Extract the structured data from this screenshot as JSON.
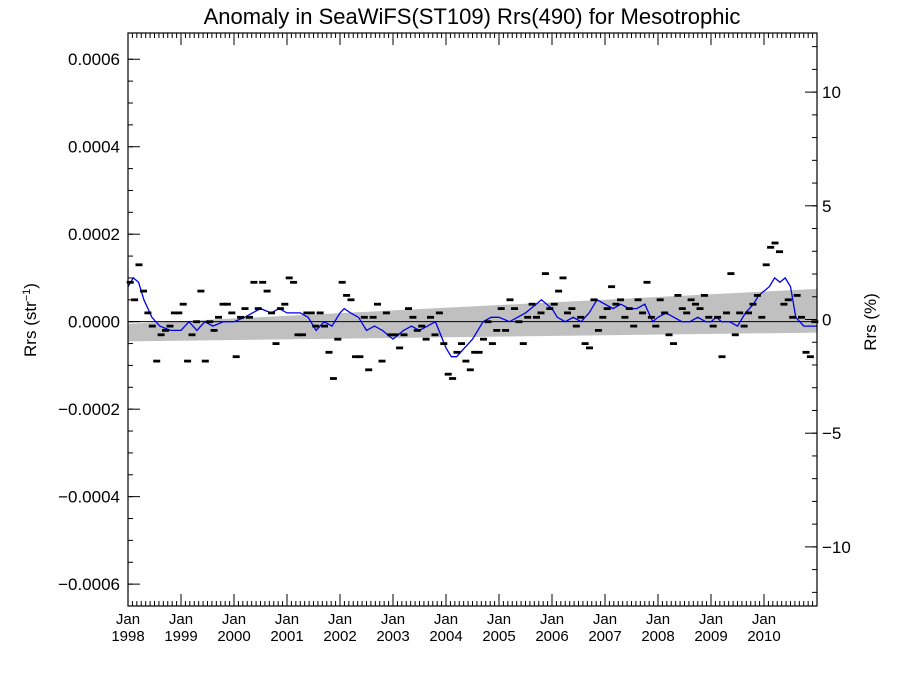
{
  "chart_data": {
    "type": "scatter",
    "title": "Anomaly in SeaWiFS(ST109) Rrs(490) for Mesotrophic",
    "ylabel_left": "Rrs (str",
    "ylabel_left_sup": "−1",
    "ylabel_left_close": ")",
    "ylabel_right": "Rrs (%)",
    "xlim": [
      1998.0,
      2011.0
    ],
    "ylim": [
      -0.00065,
      0.00066
    ],
    "ylim_right": [
      -12.6,
      12.6
    ],
    "x_ticks": [
      {
        "x": 1998,
        "month": "Jan",
        "year": "1998"
      },
      {
        "x": 1999,
        "month": "Jan",
        "year": "1999"
      },
      {
        "x": 2000,
        "month": "Jan",
        "year": "2000"
      },
      {
        "x": 2001,
        "month": "Jan",
        "year": "2001"
      },
      {
        "x": 2002,
        "month": "Jan",
        "year": "2002"
      },
      {
        "x": 2003,
        "month": "Jan",
        "year": "2003"
      },
      {
        "x": 2004,
        "month": "Jan",
        "year": "2004"
      },
      {
        "x": 2005,
        "month": "Jan",
        "year": "2005"
      },
      {
        "x": 2006,
        "month": "Jan",
        "year": "2006"
      },
      {
        "x": 2007,
        "month": "Jan",
        "year": "2007"
      },
      {
        "x": 2008,
        "month": "Jan",
        "year": "2008"
      },
      {
        "x": 2009,
        "month": "Jan",
        "year": "2009"
      },
      {
        "x": 2010,
        "month": "Jan",
        "year": "2010"
      }
    ],
    "y_ticks_left": [
      {
        "value": 0.0006,
        "label": "0.0006"
      },
      {
        "value": 0.0004,
        "label": "0.0004"
      },
      {
        "value": 0.0002,
        "label": "0.0002"
      },
      {
        "value": 0.0,
        "label": "0.0000"
      },
      {
        "value": -0.0002,
        "label": "−0.0002"
      },
      {
        "value": -0.0004,
        "label": "−0.0004"
      },
      {
        "value": -0.0006,
        "label": "−0.0006"
      }
    ],
    "y_ticks_right": [
      {
        "value": 10,
        "label": "10"
      },
      {
        "value": 5,
        "label": "5"
      },
      {
        "value": 0,
        "label": "0"
      },
      {
        "value": -5,
        "label": "−5"
      },
      {
        "value": -10,
        "label": "−10"
      }
    ],
    "grid": false,
    "colors": {
      "points": "#000000",
      "smoothed_line": "#0000ee",
      "trend_band": "#c0c0c0",
      "zero_line": "#000000"
    },
    "monthly_points_y": [
      9e-05,
      5e-05,
      0.00013,
      7e-05,
      2e-05,
      -1e-05,
      -9e-05,
      -3e-05,
      -2e-05,
      -1e-05,
      2e-05,
      2e-05,
      4e-05,
      -9e-05,
      -3e-05,
      0.0,
      7e-05,
      -9e-05,
      0.0,
      -2e-05,
      1e-05,
      4e-05,
      4e-05,
      2e-05,
      -8e-05,
      1e-05,
      3e-05,
      1e-05,
      9e-05,
      3e-05,
      9e-05,
      7e-05,
      2e-05,
      -5e-05,
      3e-05,
      4e-05,
      0.0001,
      9e-05,
      -3e-05,
      -3e-05,
      2e-05,
      2e-05,
      -1e-05,
      2e-05,
      -1e-05,
      -7e-05,
      -0.00013,
      -4e-05,
      9e-05,
      6e-05,
      5e-05,
      -8e-05,
      -8e-05,
      1e-05,
      -0.00011,
      1e-05,
      4e-05,
      -9e-05,
      2e-05,
      -3e-05,
      -3e-05,
      -6e-05,
      -3e-05,
      3e-05,
      1e-05,
      -2e-05,
      -1e-05,
      -4e-05,
      1e-05,
      -3e-05,
      2e-05,
      -5e-05,
      -0.00012,
      -0.00013,
      -7e-05,
      -5e-05,
      -9e-05,
      -0.00011,
      -7e-05,
      -7e-05,
      -4e-05,
      0.0,
      -5e-05,
      -2e-05,
      3e-05,
      -2e-05,
      5e-05,
      3e-05,
      0.0,
      -5e-05,
      1e-05,
      4e-05,
      1e-05,
      2e-05,
      0.00011,
      3e-05,
      4e-05,
      7e-05,
      0.0001,
      2e-05,
      3e-05,
      -1e-05,
      1e-05,
      -5e-05,
      -6e-05,
      5e-05,
      -2e-05,
      1e-05,
      3e-05,
      8e-05,
      4e-05,
      5e-05,
      1e-05,
      3e-05,
      -1e-05,
      5e-05,
      2e-05,
      9e-05,
      1e-05,
      -1e-05,
      5e-05,
      2e-05,
      -3e-05,
      -5e-05,
      6e-05,
      3e-05,
      2e-05,
      5e-05,
      4e-05,
      3e-05,
      6e-05,
      1e-05,
      -1e-05,
      1e-05,
      -8e-05,
      2e-05,
      0.00011,
      -3e-05,
      2e-05,
      -1e-05,
      2e-05,
      4e-05,
      6e-05,
      1e-05,
      0.00013,
      0.00017,
      0.00018,
      0.00016,
      4e-05,
      5e-05,
      1e-05,
      6e-05,
      1e-05,
      -7e-05,
      -8e-05,
      0.0
    ],
    "smoothed_series": {
      "x": [
        1998.0,
        1998.1,
        1998.2,
        1998.3,
        1998.45,
        1998.6,
        1998.8,
        1999.0,
        1999.15,
        1999.3,
        1999.45,
        1999.6,
        1999.8,
        2000.0,
        2000.2,
        2000.35,
        2000.5,
        2000.7,
        2000.85,
        2001.0,
        2001.1,
        2001.25,
        2001.4,
        2001.55,
        2001.7,
        2001.85,
        2002.0,
        2002.08,
        2002.2,
        2002.35,
        2002.5,
        2002.65,
        2002.8,
        2003.0,
        2003.1,
        2003.2,
        2003.35,
        2003.5,
        2003.65,
        2003.8,
        2004.0,
        2004.1,
        2004.2,
        2004.35,
        2004.5,
        2004.7,
        2004.85,
        2005.0,
        2005.2,
        2005.35,
        2005.5,
        2005.6,
        2005.7,
        2005.8,
        2005.9,
        2006.0,
        2006.1,
        2006.25,
        2006.4,
        2006.55,
        2006.7,
        2006.85,
        2007.0,
        2007.15,
        2007.3,
        2007.45,
        2007.6,
        2007.75,
        2007.9,
        2008.0,
        2008.15,
        2008.3,
        2008.45,
        2008.6,
        2008.75,
        2008.9,
        2009.0,
        2009.1,
        2009.2,
        2009.35,
        2009.5,
        2009.65,
        2009.8,
        2009.9,
        2010.0,
        2010.1,
        2010.2,
        2010.3,
        2010.4,
        2010.5,
        2010.6,
        2010.75,
        2010.9,
        2011.0
      ],
      "y": [
        8e-05,
        0.0001,
        9e-05,
        5e-05,
        1e-05,
        -1e-05,
        -2e-05,
        -2e-05,
        0.0,
        -2e-05,
        0.0,
        -1e-05,
        0.0,
        0.0,
        1e-05,
        2e-05,
        3e-05,
        2e-05,
        3e-05,
        2e-05,
        2e-05,
        2e-05,
        1e-05,
        -2e-05,
        0.0,
        -1e-05,
        2e-05,
        3e-05,
        2e-05,
        1e-05,
        -2e-05,
        -1e-05,
        -2e-05,
        -4e-05,
        -3e-05,
        -2e-05,
        -1e-05,
        -2e-05,
        -1e-05,
        0.0,
        -6e-05,
        -8e-05,
        -8e-05,
        -6e-05,
        -4e-05,
        0.0,
        1e-05,
        1e-05,
        0.0,
        1e-05,
        2e-05,
        3e-05,
        4e-05,
        5e-05,
        4e-05,
        3e-05,
        1e-05,
        0.0,
        1e-05,
        0.0,
        2e-05,
        5e-05,
        4e-05,
        3e-05,
        4e-05,
        3e-05,
        3e-05,
        4e-05,
        0.0,
        1e-05,
        2e-05,
        1e-05,
        0.0,
        0.0,
        1e-05,
        0.0,
        0.0,
        1e-05,
        0.0,
        0.0,
        -1e-05,
        2e-05,
        4e-05,
        6e-05,
        7e-05,
        8e-05,
        0.0001,
        9e-05,
        0.0001,
        8e-05,
        1e-05,
        -1e-05,
        -1e-05,
        -1e-05
      ]
    },
    "trend_band": {
      "x": [
        1998.0,
        2011.0
      ],
      "upper": [
        -5e-06,
        7.5e-05
      ],
      "lower": [
        -4.5e-05,
        -2.5e-05
      ]
    }
  }
}
